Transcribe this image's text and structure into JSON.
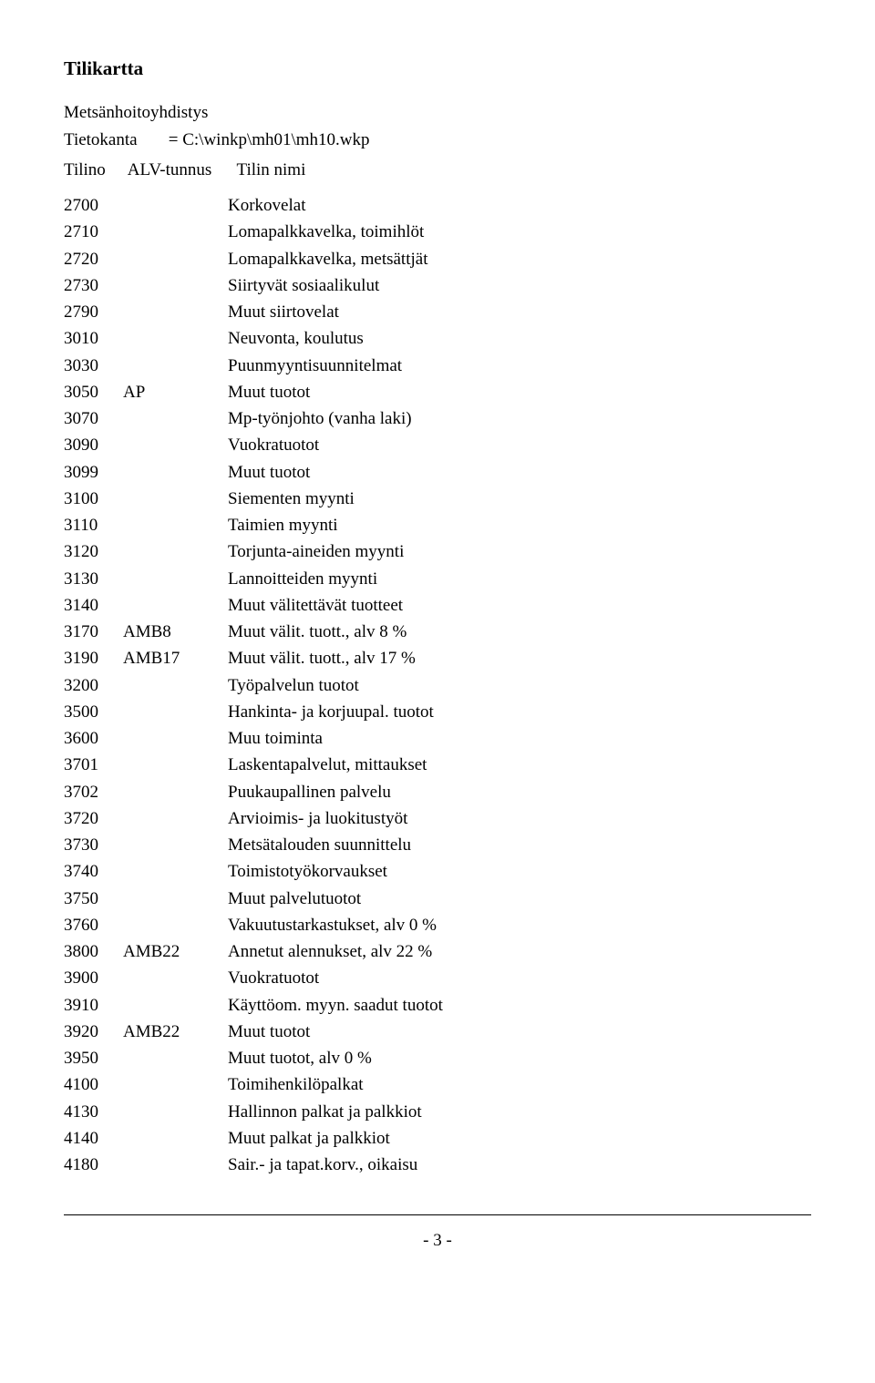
{
  "title": "Tilikartta",
  "subtitle": "Metsänhoitoyhdistys",
  "meta_label": "Tietokanta",
  "meta_value": "= C:\\winkp\\mh01\\mh10.wkp",
  "headers": {
    "tilino": "Tilino",
    "alv": "ALV-tunnus",
    "nimi": "Tilin nimi"
  },
  "rows": [
    {
      "tilino": "2700",
      "alv": "",
      "nimi": "Korkovelat"
    },
    {
      "tilino": "2710",
      "alv": "",
      "nimi": "Lomapalkkavelka, toimihlöt"
    },
    {
      "tilino": "2720",
      "alv": "",
      "nimi": "Lomapalkkavelka, metsättjät"
    },
    {
      "tilino": "2730",
      "alv": "",
      "nimi": "Siirtyvät sosiaalikulut"
    },
    {
      "tilino": "2790",
      "alv": "",
      "nimi": "Muut siirtovelat"
    },
    {
      "tilino": "3010",
      "alv": "",
      "nimi": "Neuvonta, koulutus"
    },
    {
      "tilino": "3030",
      "alv": "",
      "nimi": "Puunmyyntisuunnitelmat"
    },
    {
      "tilino": "3050",
      "alv": "AP",
      "nimi": "Muut tuotot"
    },
    {
      "tilino": "3070",
      "alv": "",
      "nimi": "Mp-työnjohto (vanha laki)"
    },
    {
      "tilino": "3090",
      "alv": "",
      "nimi": "Vuokratuotot"
    },
    {
      "tilino": "3099",
      "alv": "",
      "nimi": "Muut tuotot"
    },
    {
      "tilino": "3100",
      "alv": "",
      "nimi": "Siementen myynti"
    },
    {
      "tilino": "3110",
      "alv": "",
      "nimi": "Taimien myynti"
    },
    {
      "tilino": "3120",
      "alv": "",
      "nimi": "Torjunta-aineiden myynti"
    },
    {
      "tilino": "3130",
      "alv": "",
      "nimi": "Lannoitteiden myynti"
    },
    {
      "tilino": "3140",
      "alv": "",
      "nimi": "Muut välitettävät tuotteet"
    },
    {
      "tilino": "3170",
      "alv": "AMB8",
      "nimi": "Muut välit. tuott., alv 8 %"
    },
    {
      "tilino": "3190",
      "alv": "AMB17",
      "nimi": "Muut välit. tuott., alv 17 %"
    },
    {
      "tilino": "3200",
      "alv": "",
      "nimi": "Työpalvelun tuotot"
    },
    {
      "tilino": "3500",
      "alv": "",
      "nimi": "Hankinta- ja korjuupal. tuotot"
    },
    {
      "tilino": "3600",
      "alv": "",
      "nimi": "Muu toiminta"
    },
    {
      "tilino": "3701",
      "alv": "",
      "nimi": "Laskentapalvelut, mittaukset"
    },
    {
      "tilino": "3702",
      "alv": "",
      "nimi": "Puukaupallinen palvelu"
    },
    {
      "tilino": "3720",
      "alv": "",
      "nimi": "Arvioimis- ja luokitustyöt"
    },
    {
      "tilino": "3730",
      "alv": "",
      "nimi": "Metsätalouden suunnittelu"
    },
    {
      "tilino": "3740",
      "alv": "",
      "nimi": "Toimistotyökorvaukset"
    },
    {
      "tilino": "3750",
      "alv": "",
      "nimi": "Muut palvelutuotot"
    },
    {
      "tilino": "3760",
      "alv": "",
      "nimi": "Vakuutustarkastukset, alv 0 %"
    },
    {
      "tilino": "3800",
      "alv": "AMB22",
      "nimi": "Annetut alennukset, alv 22 %"
    },
    {
      "tilino": "3900",
      "alv": "",
      "nimi": "Vuokratuotot"
    },
    {
      "tilino": "3910",
      "alv": "",
      "nimi": "Käyttöom. myyn. saadut tuotot"
    },
    {
      "tilino": "3920",
      "alv": "AMB22",
      "nimi": "Muut tuotot"
    },
    {
      "tilino": "3950",
      "alv": "",
      "nimi": "Muut tuotot, alv 0 %"
    },
    {
      "tilino": "4100",
      "alv": "",
      "nimi": "Toimihenkilöpalkat"
    },
    {
      "tilino": "4130",
      "alv": "",
      "nimi": "Hallinnon palkat ja palkkiot"
    },
    {
      "tilino": "4140",
      "alv": "",
      "nimi": "Muut palkat ja palkkiot"
    },
    {
      "tilino": "4180",
      "alv": "",
      "nimi": "Sair.- ja tapat.korv., oikaisu"
    }
  ],
  "page_number": "- 3 -"
}
